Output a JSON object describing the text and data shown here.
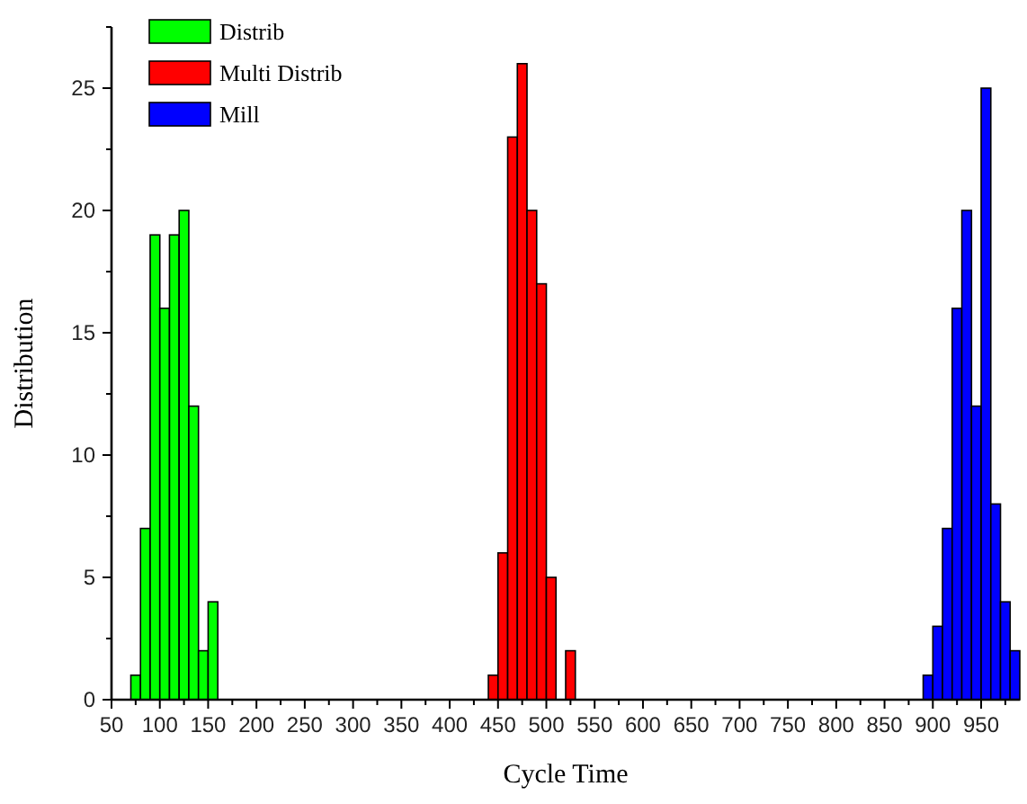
{
  "chart_data": {
    "type": "bar",
    "xlabel": "Cycle Time",
    "ylabel": "Distribution",
    "series": [
      {
        "name": "Distrib",
        "color": "#00ff00",
        "x": [
          75,
          85,
          95,
          105,
          115,
          125,
          135,
          145,
          155
        ],
        "values": [
          1,
          7,
          19,
          16,
          19,
          20,
          12,
          2,
          4
        ]
      },
      {
        "name": "Multi Distrib",
        "color": "#ff0000",
        "x": [
          445,
          455,
          465,
          475,
          485,
          495,
          505,
          515,
          525
        ],
        "values": [
          1,
          6,
          23,
          26,
          20,
          17,
          5,
          0,
          2
        ]
      },
      {
        "name": "Mill",
        "color": "#0000ff",
        "x": [
          895,
          905,
          915,
          925,
          935,
          945,
          955,
          965,
          975,
          985
        ],
        "values": [
          1,
          3,
          7,
          16,
          20,
          12,
          25,
          8,
          4,
          2
        ]
      }
    ],
    "xlim": [
      50,
      990
    ],
    "xticks": [
      50,
      {
        "value": 75,
        "label": null
      },
      100,
      {
        "value": 125,
        "label": null
      },
      150,
      {
        "value": 175,
        "label": null
      },
      200,
      {
        "value": 225,
        "label": null
      },
      250,
      {
        "value": 275,
        "label": null
      },
      300,
      {
        "value": 325,
        "label": null
      },
      350,
      {
        "value": 375,
        "label": null
      },
      400,
      {
        "value": 425,
        "label": null
      },
      450,
      {
        "value": 475,
        "label": null
      },
      500,
      {
        "value": 525,
        "label": null
      },
      550,
      {
        "value": 575,
        "label": null
      },
      600,
      {
        "value": 625,
        "label": null
      },
      650,
      {
        "value": 675,
        "label": null
      },
      700,
      {
        "value": 725,
        "label": null
      },
      750,
      {
        "value": 775,
        "label": null
      },
      800,
      {
        "value": 825,
        "label": null
      },
      850,
      {
        "value": 875,
        "label": null
      },
      900,
      {
        "value": 925,
        "label": null
      },
      950,
      {
        "value": 975,
        "label": null
      }
    ],
    "ylim": [
      0,
      27.5
    ],
    "yticks": [
      0,
      {
        "value": 2.5,
        "label": null
      },
      5,
      {
        "value": 7.5,
        "label": null
      },
      10,
      {
        "value": 12.5,
        "label": null
      },
      15,
      {
        "value": 17.5,
        "label": null
      },
      20,
      {
        "value": 22.5,
        "label": null
      },
      25,
      {
        "value": 27.5,
        "label": null
      }
    ],
    "grid": false,
    "legend": "top left"
  }
}
